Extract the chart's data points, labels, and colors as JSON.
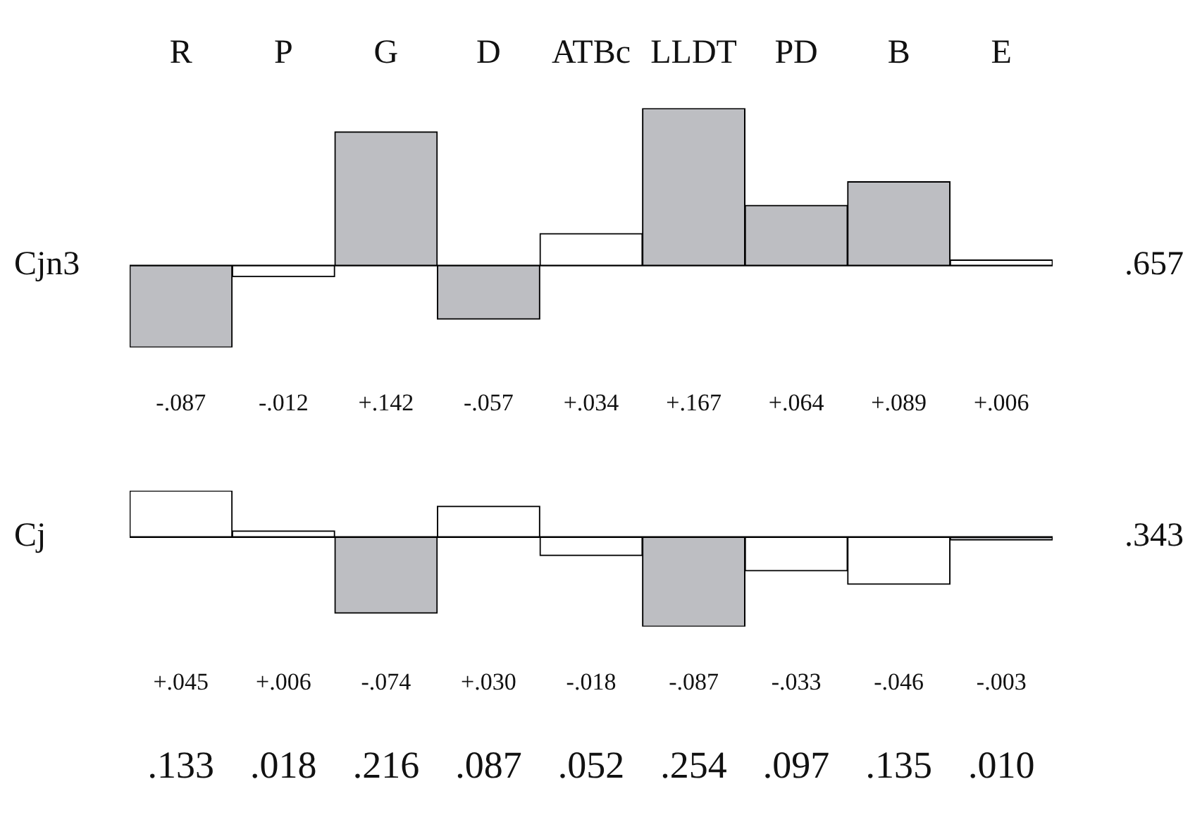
{
  "chart_data": [
    {
      "type": "bar",
      "ylabel": "Cjn3",
      "tick_labels": "x",
      "categories": [
        "R",
        "P",
        "G",
        "D",
        "ATBc",
        "LLDT",
        "PD",
        "B",
        "E"
      ],
      "values": [
        -0.087,
        -0.012,
        0.142,
        -0.057,
        0.034,
        0.167,
        0.064,
        0.089,
        0.006
      ],
      "colors": [
        "#bdbec2",
        "#ffffff",
        "#bdbec2",
        "#bdbec2",
        "#ffffff",
        "#bdbec2",
        "#bdbec2",
        "#bdbec2",
        "#ffffff"
      ],
      "value_labels": [
        "-.087",
        "-.012",
        "+.142",
        "-.057",
        "+.034",
        "+.167",
        "+.064",
        "+.089",
        "+.006"
      ],
      "annotations": [
        ".657"
      ]
    },
    {
      "type": "bar",
      "ylabel": "Cj",
      "tick_labels": false,
      "categories": [
        null,
        null,
        null,
        null,
        null,
        null,
        null,
        null,
        null
      ],
      "values": [
        0.045,
        0.006,
        -0.074,
        0.03,
        -0.018,
        -0.087,
        -0.033,
        -0.046,
        -0.003
      ],
      "colors": [
        "#ffffff",
        "#ffffff",
        "#bdbec2",
        "#ffffff",
        "#ffffff",
        "#bdbec2",
        "#ffffff",
        "#ffffff",
        "#bdbec2"
      ],
      "value_labels": [
        "+.045",
        "+.006",
        "-.074",
        "+.030",
        "-.018",
        "-.087",
        "-.033",
        "-.046",
        "-.003"
      ],
      "annotations": [
        ".343",
        ".133",
        ".018",
        ".216",
        ".087",
        ".052",
        ".254",
        ".097",
        ".135",
        ".010"
      ]
    }
  ]
}
